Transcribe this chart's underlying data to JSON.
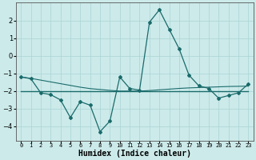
{
  "x": [
    0,
    1,
    2,
    3,
    4,
    5,
    6,
    7,
    8,
    9,
    10,
    11,
    12,
    13,
    14,
    15,
    16,
    17,
    18,
    19,
    20,
    21,
    22,
    23
  ],
  "y_main": [
    -1.2,
    -1.3,
    -2.1,
    -2.2,
    -2.5,
    -3.5,
    -2.6,
    -2.8,
    -4.3,
    -3.7,
    -1.2,
    -1.85,
    -1.95,
    1.9,
    2.6,
    1.5,
    0.4,
    -1.1,
    -1.7,
    -1.85,
    -2.4,
    -2.25,
    -2.1,
    -1.6
  ],
  "y_trend1": [
    -1.2,
    -1.28,
    -1.38,
    -1.48,
    -1.58,
    -1.68,
    -1.78,
    -1.86,
    -1.91,
    -1.96,
    -2.0,
    -2.0,
    -2.0,
    -1.97,
    -1.93,
    -1.89,
    -1.85,
    -1.82,
    -1.8,
    -1.78,
    -1.76,
    -1.74,
    -1.73,
    -1.72
  ],
  "y_trend2": [
    -2.0,
    -2.0,
    -2.0,
    -2.0,
    -2.0,
    -2.0,
    -2.0,
    -2.0,
    -2.0,
    -2.0,
    -2.0,
    -2.0,
    -2.0,
    -2.0,
    -2.0,
    -2.0,
    -2.0,
    -2.0,
    -2.0,
    -2.0,
    -2.0,
    -2.0,
    -2.0,
    -2.0
  ],
  "line_color": "#1a6b6b",
  "background_color": "#cceaea",
  "grid_color": "#aad4d4",
  "xlabel": "Humidex (Indice chaleur)",
  "ylim": [
    -4.8,
    3.0
  ],
  "xlim": [
    -0.5,
    23.5
  ],
  "yticks": [
    -4,
    -3,
    -2,
    -1,
    0,
    1,
    2
  ],
  "xtick_labels": [
    "0",
    "1",
    "2",
    "3",
    "4",
    "5",
    "6",
    "7",
    "8",
    "9",
    "10",
    "11",
    "12",
    "13",
    "14",
    "15",
    "16",
    "17",
    "18",
    "19",
    "20",
    "21",
    "22",
    "23"
  ]
}
